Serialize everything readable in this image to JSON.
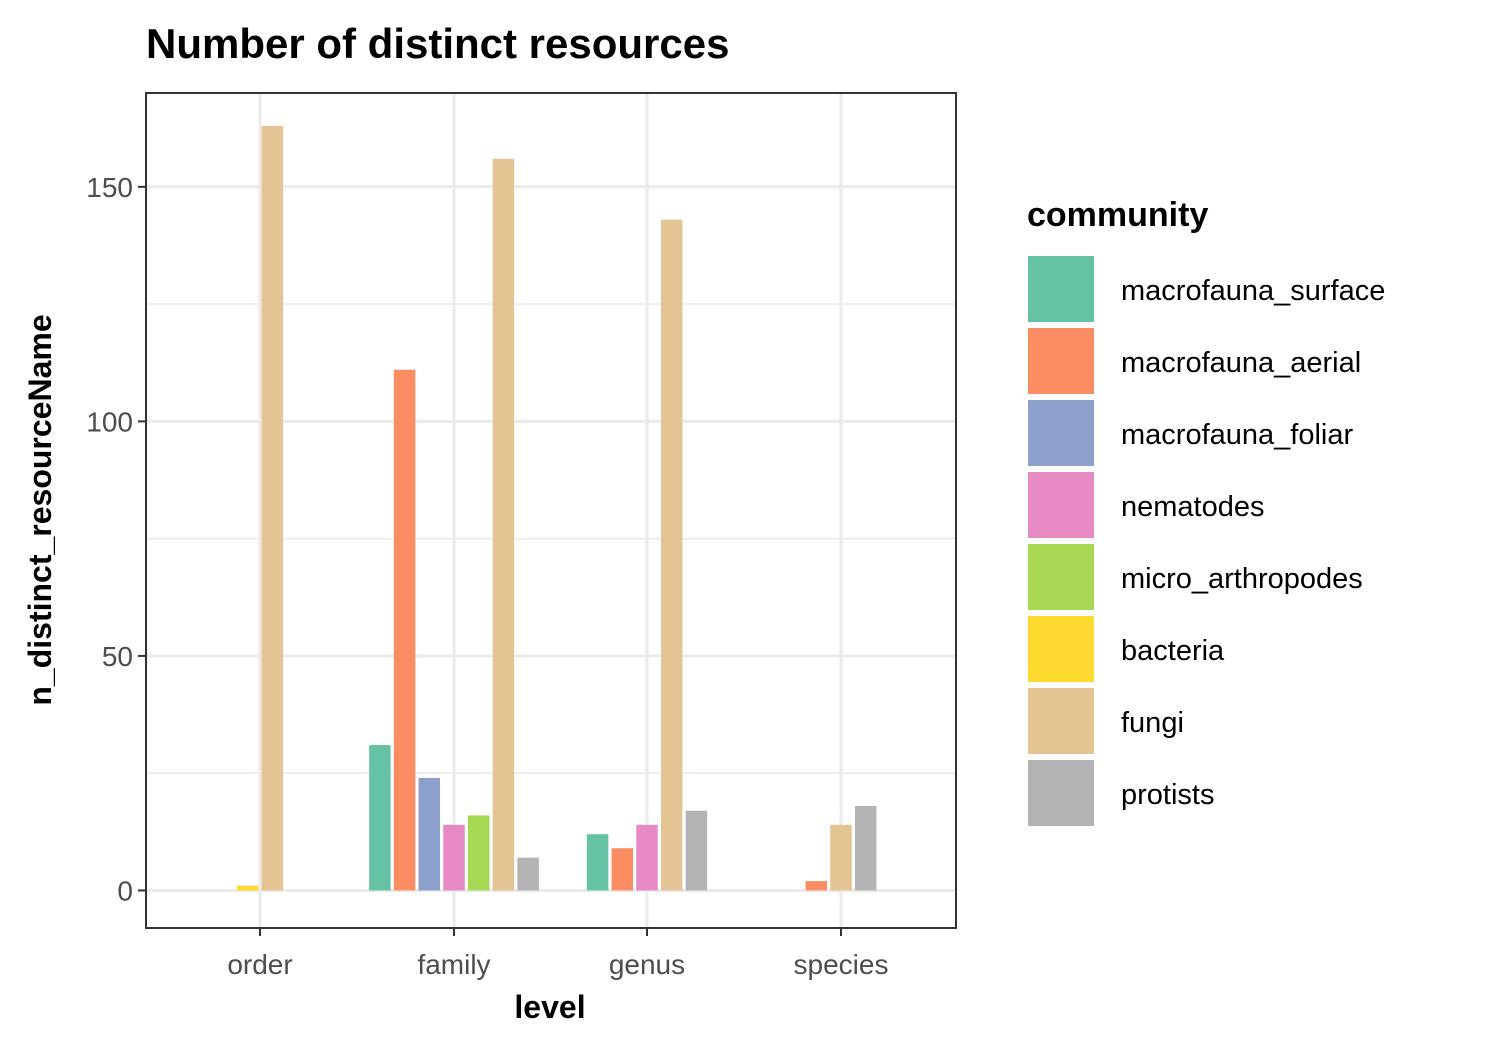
{
  "chart_data": {
    "type": "bar",
    "title": "Number of distinct resources",
    "xlabel": "level",
    "ylabel": "n_distinct_resourceName",
    "categories": [
      "order",
      "family",
      "genus",
      "species"
    ],
    "yticks": [
      0,
      50,
      100,
      150
    ],
    "ylim": [
      -8,
      170
    ],
    "grid": true,
    "legend": {
      "title": "community",
      "position": "right"
    },
    "series": [
      {
        "name": "macrofauna_surface",
        "color": "#66c2a5",
        "values": [
          null,
          31,
          12,
          null
        ]
      },
      {
        "name": "macrofauna_aerial",
        "color": "#fc8d62",
        "values": [
          null,
          111,
          9,
          2
        ]
      },
      {
        "name": "macrofauna_foliar",
        "color": "#8da0cb",
        "values": [
          null,
          24,
          null,
          null
        ]
      },
      {
        "name": "nematodes",
        "color": "#e78ac3",
        "values": [
          null,
          14,
          14,
          null
        ]
      },
      {
        "name": "micro_arthropodes",
        "color": "#a6d854",
        "values": [
          null,
          16,
          null,
          null
        ]
      },
      {
        "name": "bacteria",
        "color": "#ffd92f",
        "values": [
          1,
          null,
          null,
          null
        ]
      },
      {
        "name": "fungi",
        "color": "#e5c494",
        "values": [
          163,
          156,
          143,
          14
        ]
      },
      {
        "name": "protists",
        "color": "#b3b3b3",
        "values": [
          null,
          7,
          17,
          18
        ]
      }
    ]
  }
}
